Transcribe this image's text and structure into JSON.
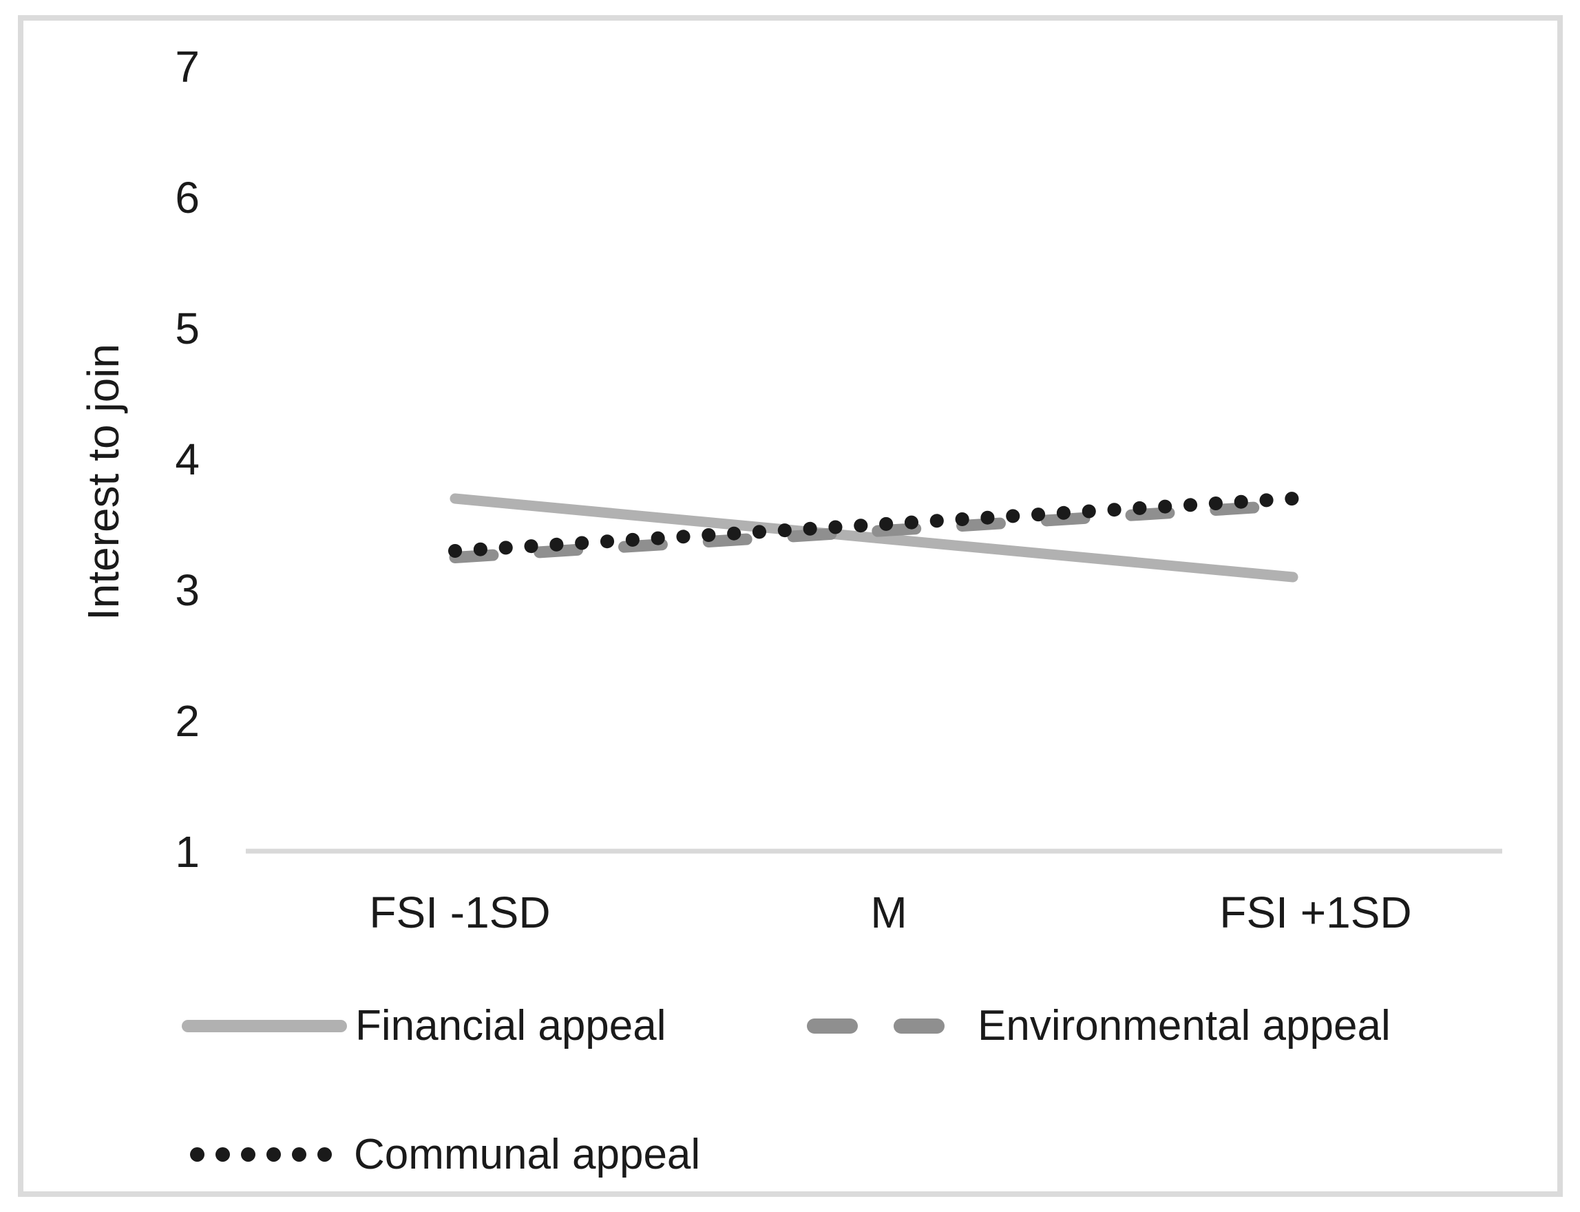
{
  "chart_data": {
    "type": "line",
    "title": "",
    "ylabel": "Interest to join",
    "xlabel": "",
    "categories": [
      "FSI -1SD",
      "M",
      "FSI +1SD"
    ],
    "series": [
      {
        "name": "Financial appeal",
        "values": [
          3.7,
          3.4,
          3.1
        ],
        "line_style": "solid",
        "color": "#B1B1B1"
      },
      {
        "name": "Environmental appeal",
        "values": [
          3.25,
          3.45,
          3.65
        ],
        "line_style": "dashed",
        "color": "#8F8F8F"
      },
      {
        "name": "Communal appeal",
        "values": [
          3.3,
          3.5,
          3.7
        ],
        "line_style": "dotted",
        "color": "#1A1A1A"
      }
    ],
    "ylim": [
      1,
      7
    ],
    "yticks": [
      7,
      6,
      5,
      4,
      3,
      2,
      1
    ],
    "grid": false,
    "legend_position": "bottom",
    "axis_line_color": "#D9D9D9",
    "frame_border_color": "#DBDBDB"
  }
}
